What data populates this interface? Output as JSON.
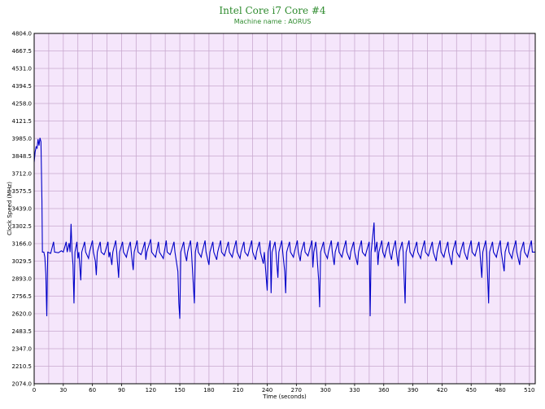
{
  "chart_data": {
    "type": "line",
    "title": "Intel Core i7 Core #4",
    "subtitle": "Machine name : AORUS",
    "xlabel": "Time (seconds)",
    "ylabel": "Clock Speed (MHz)",
    "xlim": [
      0,
      516
    ],
    "ylim": [
      2074.0,
      4804.0
    ],
    "x_ticks": [
      0,
      30,
      60,
      90,
      120,
      150,
      180,
      210,
      240,
      270,
      300,
      330,
      360,
      390,
      420,
      450,
      480,
      510
    ],
    "y_ticks": [
      2074.0,
      2210.5,
      2347.0,
      2483.5,
      2620.0,
      2756.5,
      2893.0,
      3029.5,
      3166.0,
      3302.5,
      3439.0,
      3575.5,
      3712.0,
      3848.5,
      3985.0,
      4121.5,
      4258.0,
      4394.5,
      4531.0,
      4667.5,
      4804.0
    ],
    "grid": true,
    "colors": {
      "line": "#0000c8",
      "plot_bg": "#f5e6fb",
      "grid": "#c9a9cf",
      "title": "#2e8b2e"
    },
    "series": [
      {
        "base": 3100,
        "points": [
          [
            0,
            3800
          ],
          [
            1,
            3880
          ],
          [
            2,
            3920
          ],
          [
            3,
            3910
          ],
          [
            4,
            3980
          ],
          [
            5,
            3930
          ],
          [
            6,
            3990
          ],
          [
            7,
            3960
          ],
          [
            8,
            3500
          ],
          [
            8.5,
            3100
          ],
          [
            10,
            3100
          ],
          [
            11,
            3060
          ],
          [
            12,
            2930
          ],
          [
            13,
            2600
          ],
          [
            14,
            3100
          ],
          [
            17,
            3090
          ],
          [
            20,
            3180
          ],
          [
            21,
            3100
          ],
          [
            25,
            3095
          ],
          [
            28,
            3110
          ],
          [
            30,
            3100
          ],
          [
            33,
            3180
          ],
          [
            34,
            3100
          ],
          [
            36,
            3170
          ],
          [
            37,
            3100
          ],
          [
            38,
            3320
          ],
          [
            39,
            3100
          ],
          [
            40,
            3000
          ],
          [
            41,
            2700
          ],
          [
            42,
            3100
          ],
          [
            44,
            3180
          ],
          [
            45,
            3050
          ],
          [
            46,
            3100
          ],
          [
            48,
            2880
          ],
          [
            49,
            3100
          ],
          [
            52,
            3180
          ],
          [
            53,
            3100
          ],
          [
            56,
            3050
          ],
          [
            57,
            3100
          ],
          [
            60,
            3190
          ],
          [
            61,
            3100
          ],
          [
            63,
            3030
          ],
          [
            64,
            2920
          ],
          [
            65,
            3100
          ],
          [
            68,
            3180
          ],
          [
            69,
            3100
          ],
          [
            72,
            3080
          ],
          [
            73,
            3100
          ],
          [
            76,
            3180
          ],
          [
            77,
            3060
          ],
          [
            78,
            3100
          ],
          [
            80,
            3000
          ],
          [
            81,
            3100
          ],
          [
            84,
            3190
          ],
          [
            85,
            3100
          ],
          [
            87,
            2900
          ],
          [
            88,
            3100
          ],
          [
            91,
            3180
          ],
          [
            92,
            3100
          ],
          [
            95,
            3060
          ],
          [
            96,
            3100
          ],
          [
            99,
            3180
          ],
          [
            100,
            3100
          ],
          [
            102,
            2960
          ],
          [
            103,
            3100
          ],
          [
            106,
            3190
          ],
          [
            107,
            3100
          ],
          [
            110,
            3080
          ],
          [
            111,
            3100
          ],
          [
            114,
            3180
          ],
          [
            115,
            3040
          ],
          [
            116,
            3100
          ],
          [
            120,
            3200
          ],
          [
            121,
            3100
          ],
          [
            125,
            3060
          ],
          [
            126,
            3100
          ],
          [
            128,
            3180
          ],
          [
            129,
            3100
          ],
          [
            133,
            3050
          ],
          [
            134,
            3100
          ],
          [
            136,
            3190
          ],
          [
            137,
            3100
          ],
          [
            140,
            3080
          ],
          [
            141,
            3100
          ],
          [
            144,
            3180
          ],
          [
            145,
            3100
          ],
          [
            148,
            2950
          ],
          [
            149,
            2700
          ],
          [
            150,
            2580
          ],
          [
            151,
            3100
          ],
          [
            154,
            3180
          ],
          [
            155,
            3100
          ],
          [
            157,
            3030
          ],
          [
            158,
            3100
          ],
          [
            161,
            3190
          ],
          [
            162,
            3100
          ],
          [
            165,
            2700
          ],
          [
            166,
            3100
          ],
          [
            168,
            3180
          ],
          [
            169,
            3100
          ],
          [
            172,
            3060
          ],
          [
            173,
            3100
          ],
          [
            176,
            3190
          ],
          [
            177,
            3100
          ],
          [
            180,
            3000
          ],
          [
            181,
            3100
          ],
          [
            184,
            3180
          ],
          [
            185,
            3100
          ],
          [
            188,
            3040
          ],
          [
            189,
            3100
          ],
          [
            192,
            3190
          ],
          [
            193,
            3100
          ],
          [
            196,
            3070
          ],
          [
            197,
            3100
          ],
          [
            200,
            3180
          ],
          [
            201,
            3100
          ],
          [
            204,
            3060
          ],
          [
            205,
            3100
          ],
          [
            208,
            3190
          ],
          [
            209,
            3100
          ],
          [
            212,
            3050
          ],
          [
            213,
            3100
          ],
          [
            216,
            3180
          ],
          [
            217,
            3100
          ],
          [
            220,
            3070
          ],
          [
            221,
            3100
          ],
          [
            224,
            3190
          ],
          [
            225,
            3100
          ],
          [
            228,
            3040
          ],
          [
            229,
            3100
          ],
          [
            232,
            3180
          ],
          [
            233,
            3100
          ],
          [
            236,
            3010
          ],
          [
            237,
            3100
          ],
          [
            240,
            2800
          ],
          [
            241,
            3100
          ],
          [
            243,
            3190
          ],
          [
            244,
            2780
          ],
          [
            245,
            3100
          ],
          [
            248,
            3180
          ],
          [
            249,
            3100
          ],
          [
            251,
            2900
          ],
          [
            252,
            3100
          ],
          [
            255,
            3190
          ],
          [
            256,
            3100
          ],
          [
            258,
            2950
          ],
          [
            259,
            2780
          ],
          [
            260,
            3100
          ],
          [
            263,
            3180
          ],
          [
            264,
            3100
          ],
          [
            267,
            3060
          ],
          [
            268,
            3100
          ],
          [
            271,
            3190
          ],
          [
            272,
            3100
          ],
          [
            274,
            3030
          ],
          [
            275,
            3100
          ],
          [
            278,
            3180
          ],
          [
            279,
            3100
          ],
          [
            282,
            3070
          ],
          [
            283,
            3100
          ],
          [
            286,
            3190
          ],
          [
            287,
            2980
          ],
          [
            288,
            3100
          ],
          [
            290,
            3180
          ],
          [
            291,
            3100
          ],
          [
            293,
            2880
          ],
          [
            294,
            2670
          ],
          [
            295,
            3100
          ],
          [
            298,
            3180
          ],
          [
            299,
            3100
          ],
          [
            302,
            3050
          ],
          [
            303,
            3100
          ],
          [
            306,
            3190
          ],
          [
            307,
            3100
          ],
          [
            309,
            3000
          ],
          [
            310,
            3100
          ],
          [
            313,
            3180
          ],
          [
            314,
            3100
          ],
          [
            317,
            3060
          ],
          [
            318,
            3100
          ],
          [
            321,
            3190
          ],
          [
            322,
            3100
          ],
          [
            325,
            3040
          ],
          [
            326,
            3100
          ],
          [
            329,
            3180
          ],
          [
            330,
            3100
          ],
          [
            333,
            3000
          ],
          [
            334,
            3100
          ],
          [
            337,
            3190
          ],
          [
            338,
            3100
          ],
          [
            341,
            3070
          ],
          [
            342,
            3100
          ],
          [
            345,
            3180
          ],
          [
            346,
            2600
          ],
          [
            347,
            3100
          ],
          [
            349,
            3250
          ],
          [
            350,
            3330
          ],
          [
            351,
            3100
          ],
          [
            353,
            3180
          ],
          [
            354,
            3000
          ],
          [
            355,
            3100
          ],
          [
            358,
            3190
          ],
          [
            359,
            3100
          ],
          [
            361,
            3060
          ],
          [
            362,
            3100
          ],
          [
            365,
            3180
          ],
          [
            366,
            3100
          ],
          [
            368,
            3040
          ],
          [
            369,
            3100
          ],
          [
            372,
            3190
          ],
          [
            373,
            3100
          ],
          [
            375,
            2990
          ],
          [
            376,
            3100
          ],
          [
            379,
            3180
          ],
          [
            380,
            3100
          ],
          [
            382,
            2700
          ],
          [
            383,
            3100
          ],
          [
            386,
            3190
          ],
          [
            387,
            3100
          ],
          [
            390,
            3060
          ],
          [
            391,
            3100
          ],
          [
            394,
            3180
          ],
          [
            395,
            3100
          ],
          [
            398,
            3050
          ],
          [
            399,
            3100
          ],
          [
            402,
            3190
          ],
          [
            403,
            3100
          ],
          [
            406,
            3070
          ],
          [
            407,
            3100
          ],
          [
            410,
            3180
          ],
          [
            411,
            3100
          ],
          [
            414,
            3030
          ],
          [
            415,
            3100
          ],
          [
            418,
            3190
          ],
          [
            419,
            3100
          ],
          [
            422,
            3060
          ],
          [
            423,
            3100
          ],
          [
            426,
            3180
          ],
          [
            427,
            3100
          ],
          [
            430,
            3000
          ],
          [
            431,
            3100
          ],
          [
            434,
            3190
          ],
          [
            435,
            3100
          ],
          [
            438,
            3060
          ],
          [
            439,
            3100
          ],
          [
            442,
            3180
          ],
          [
            443,
            3100
          ],
          [
            446,
            3040
          ],
          [
            447,
            3100
          ],
          [
            450,
            3190
          ],
          [
            451,
            3100
          ],
          [
            454,
            3070
          ],
          [
            455,
            3100
          ],
          [
            458,
            3180
          ],
          [
            459,
            3100
          ],
          [
            461,
            2900
          ],
          [
            462,
            3100
          ],
          [
            465,
            3190
          ],
          [
            466,
            3100
          ],
          [
            468,
            2700
          ],
          [
            469,
            3100
          ],
          [
            472,
            3180
          ],
          [
            473,
            3100
          ],
          [
            476,
            3060
          ],
          [
            477,
            3100
          ],
          [
            480,
            3190
          ],
          [
            481,
            3100
          ],
          [
            484,
            2950
          ],
          [
            485,
            3100
          ],
          [
            488,
            3180
          ],
          [
            489,
            3100
          ],
          [
            492,
            3050
          ],
          [
            493,
            3100
          ],
          [
            496,
            3190
          ],
          [
            497,
            3100
          ],
          [
            500,
            3000
          ],
          [
            501,
            3100
          ],
          [
            504,
            3180
          ],
          [
            505,
            3100
          ],
          [
            508,
            3060
          ],
          [
            509,
            3100
          ],
          [
            512,
            3190
          ],
          [
            513,
            3100
          ],
          [
            516,
            3100
          ]
        ]
      }
    ]
  }
}
